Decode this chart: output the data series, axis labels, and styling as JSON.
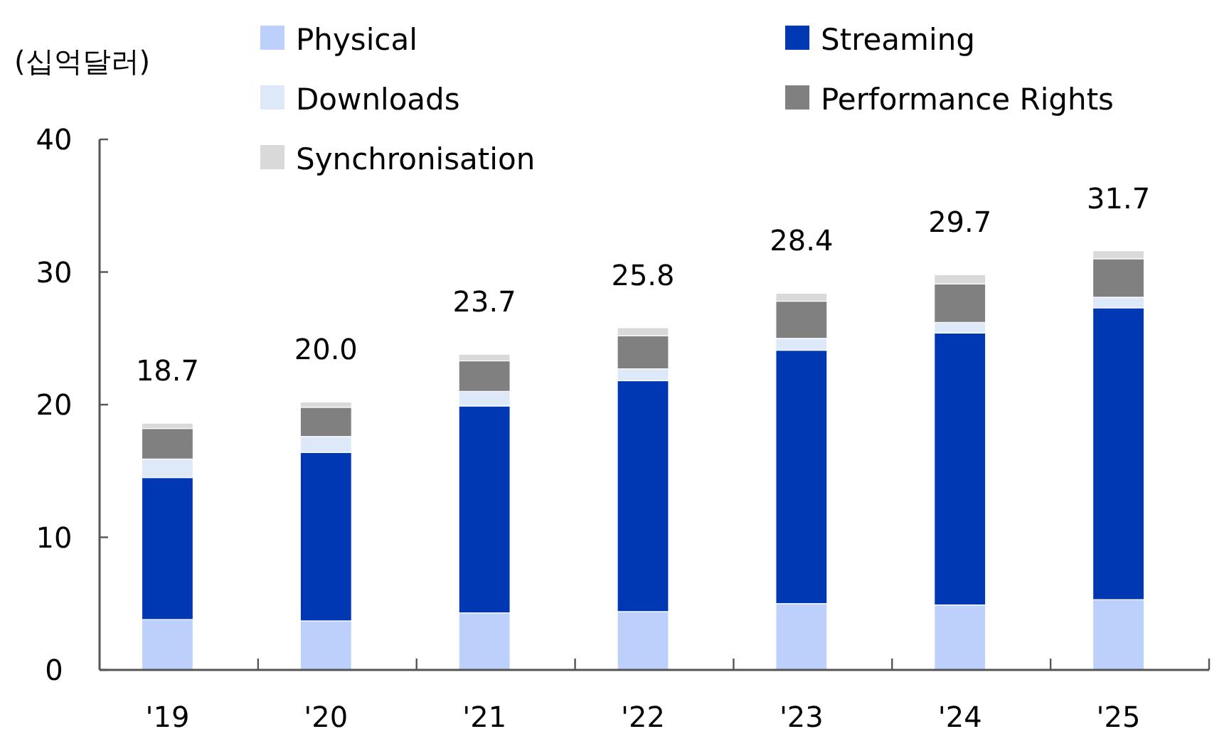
{
  "chart_data": {
    "type": "bar",
    "stacked": true,
    "ylabel": "(십억달러)",
    "categories": [
      "'19",
      "'20",
      "'21",
      "'22",
      "'23",
      "'24",
      "'25"
    ],
    "ylim": [
      0,
      40
    ],
    "yticks": [
      0,
      10,
      20,
      30,
      40
    ],
    "legend": "top",
    "grid": false,
    "series": [
      {
        "name": "Physical",
        "color": "#bdd0fb",
        "values": [
          3.8,
          3.7,
          4.3,
          4.4,
          5.0,
          4.9,
          5.3
        ]
      },
      {
        "name": "Streaming",
        "color": "#0037b3",
        "values": [
          10.7,
          12.7,
          15.6,
          17.4,
          19.1,
          20.5,
          22.0
        ]
      },
      {
        "name": "Downloads",
        "color": "#dde8f8",
        "values": [
          1.4,
          1.2,
          1.1,
          0.9,
          0.9,
          0.8,
          0.8
        ]
      },
      {
        "name": "Performance Rights",
        "color": "#808080",
        "values": [
          2.3,
          2.2,
          2.3,
          2.5,
          2.8,
          2.9,
          2.9
        ]
      },
      {
        "name": "Synchronisation",
        "color": "#d9d9d9",
        "values": [
          0.4,
          0.4,
          0.5,
          0.6,
          0.6,
          0.7,
          0.6
        ]
      }
    ],
    "totals": [
      "18.7",
      "20.0",
      "23.7",
      "25.8",
      "28.4",
      "29.7",
      "31.7"
    ]
  }
}
